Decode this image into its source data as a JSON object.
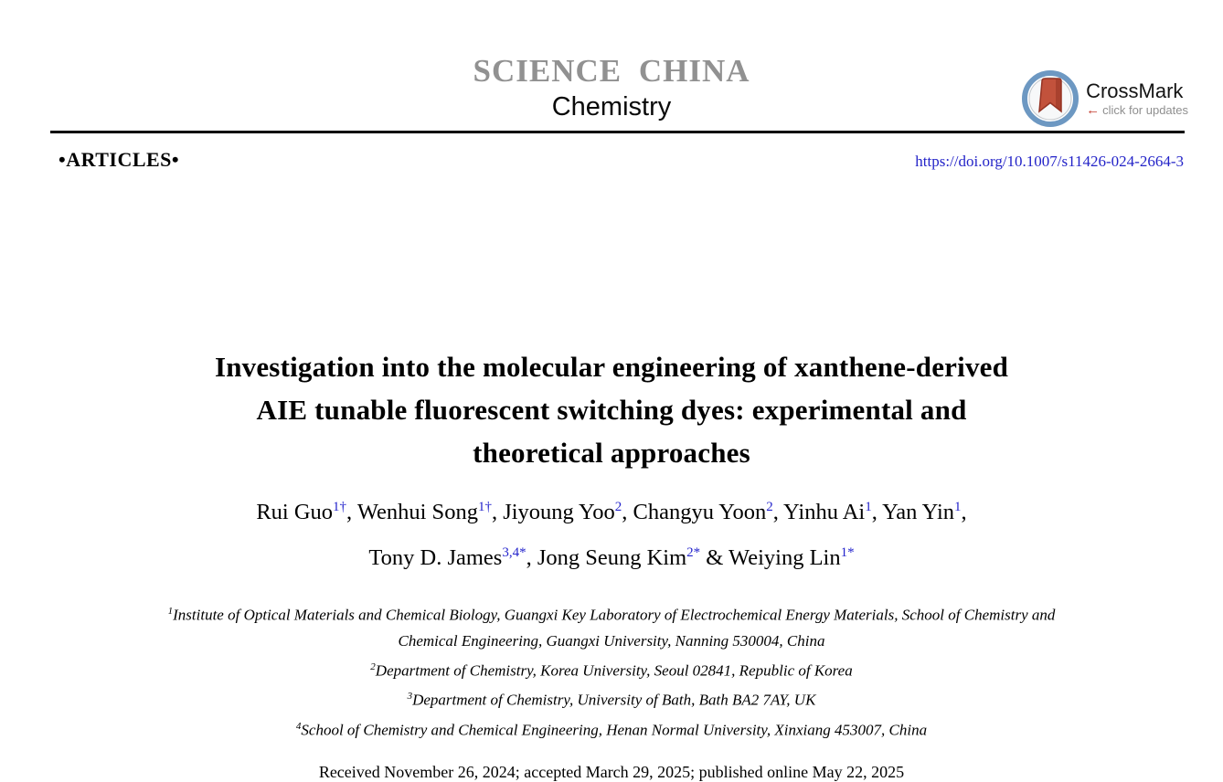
{
  "journal": {
    "name": "SCIENCE CHINA",
    "subtitle": "Chemistry"
  },
  "crossmark": {
    "label": "CrossMark",
    "tagline": "click for updates"
  },
  "band": {
    "section": "•ARTICLES•",
    "doi": "https://doi.org/10.1007/s11426-024-2664-3"
  },
  "title": {
    "text": "Investigation into the molecular engineering of xanthene-derived AIE tunable fluorescent switching dyes: experimental and theoretical approaches",
    "lines": [
      "Investigation into the molecular engineering of xanthene-derived",
      "AIE tunable fluorescent switching dyes: experimental and",
      "theoretical approaches"
    ]
  },
  "authors": {
    "lines": [
      [
        {
          "name": "Rui Guo",
          "sup": "1†",
          "sep": ", "
        },
        {
          "name": "Wenhui Song",
          "sup": "1†",
          "sep": ", "
        },
        {
          "name": "Jiyoung Yoo",
          "sup": "2",
          "sep": ", "
        },
        {
          "name": "Changyu Yoon",
          "sup": "2",
          "sep": ", "
        },
        {
          "name": "Yinhu Ai",
          "sup": "1",
          "sep": ", "
        },
        {
          "name": "Yan Yin",
          "sup": "1",
          "sep": ","
        }
      ],
      [
        {
          "name": "Tony D. James",
          "sup": "3,4*",
          "sep": ", "
        },
        {
          "name": "Jong Seung Kim",
          "sup": "2*",
          "sep": " & "
        },
        {
          "name": "Weiying Lin",
          "sup": "1*",
          "sep": ""
        }
      ]
    ]
  },
  "affiliations": [
    {
      "sup": "1",
      "text": "Institute of Optical Materials and Chemical Biology, Guangxi Key Laboratory of Electrochemical Energy Materials, School of Chemistry and Chemical Engineering, Guangxi University, Nanning 530004, China"
    },
    {
      "sup": "2",
      "text": "Department of Chemistry, Korea University, Seoul 02841, Republic of Korea"
    },
    {
      "sup": "3",
      "text": "Department of Chemistry, University of Bath, Bath BA2 7AY, UK"
    },
    {
      "sup": "4",
      "text": "School of Chemistry and Chemical Engineering, Henan Normal University, Xinxiang 453007, China"
    }
  ],
  "dates": "Received November 26, 2024; accepted March 29, 2025; published online May 22, 2025",
  "colors": {
    "journal_gray": "#919191",
    "doi_link": "#2323c8",
    "superscript": "#2424cc",
    "crossmark_red": "#c2523c",
    "crossmark_red_dark": "#953323",
    "crossmark_ring": "#6d98c2",
    "tagline_gray": "#8f8f8f",
    "arrow_red": "#c23b2e"
  }
}
